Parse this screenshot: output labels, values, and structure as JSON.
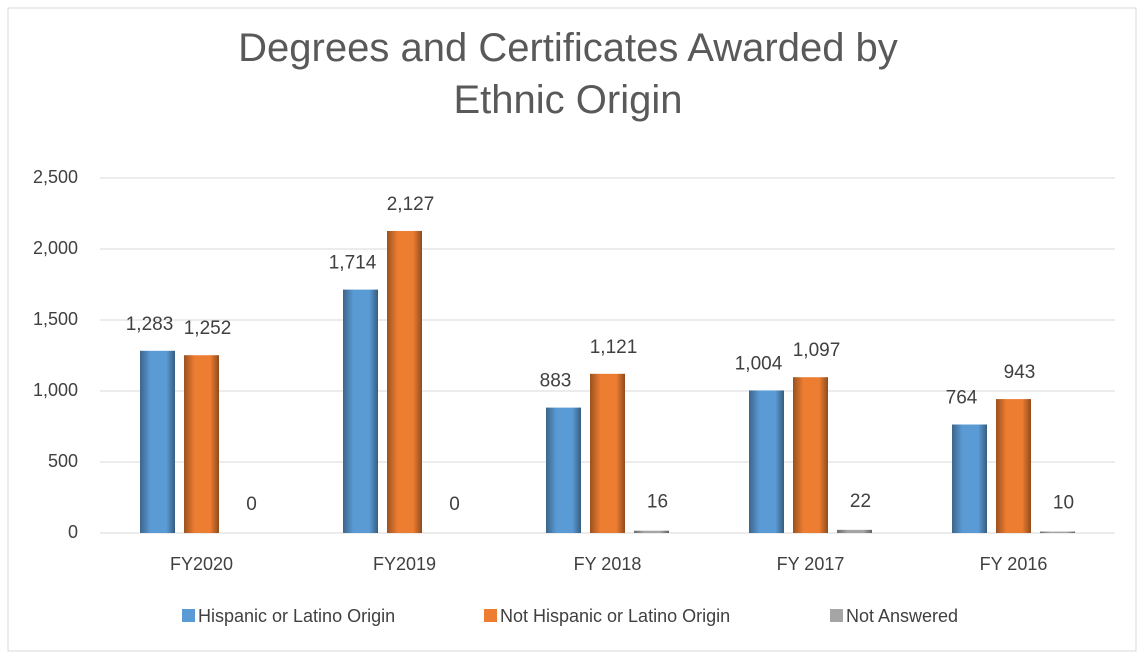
{
  "chart_data": {
    "type": "bar",
    "title": "Degrees and Certificates Awarded by Ethnic Origin",
    "categories": [
      "FY2020",
      "FY2019",
      "FY 2018",
      "FY 2017",
      "FY 2016"
    ],
    "series": [
      {
        "name": "Hispanic or Latino Origin",
        "color": "#5b9bd5",
        "values": [
          1283,
          1714,
          883,
          1004,
          764
        ],
        "value_labels": [
          "1,283",
          "1,714",
          "883",
          "1,004",
          "764"
        ]
      },
      {
        "name": "Not Hispanic or Latino Origin",
        "color": "#ed7d31",
        "values": [
          1252,
          2127,
          1121,
          1097,
          943
        ],
        "value_labels": [
          "1,252",
          "2,127",
          "1,121",
          "1,097",
          "943"
        ]
      },
      {
        "name": "Not Answered",
        "color": "#a5a5a5",
        "values": [
          0,
          0,
          16,
          22,
          10
        ]
      }
    ],
    "ylim": [
      0,
      2500
    ],
    "yticks": [
      0,
      500,
      {
        "value": 1000,
        "label": "1,000"
      },
      {
        "value": 1500,
        "label": "1,500"
      },
      {
        "value": 2000,
        "label": "2,000"
      },
      {
        "value": 2500,
        "label": "2,500"
      }
    ],
    "grid": true,
    "legend": "bottom"
  }
}
